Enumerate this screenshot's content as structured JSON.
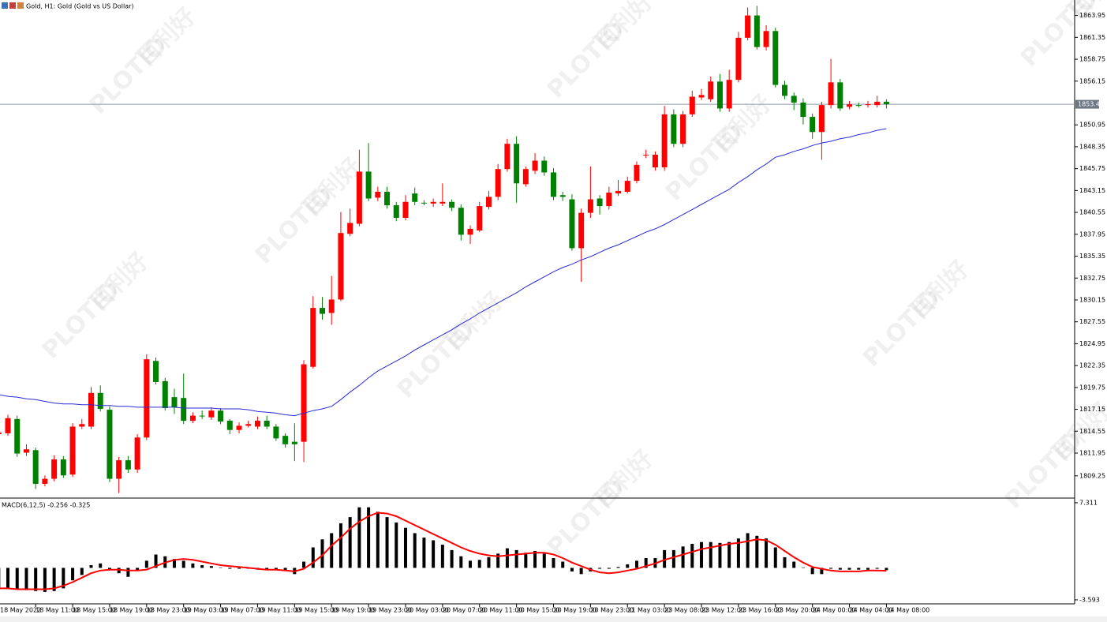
{
  "chart_data": [
    {
      "type": "candlestick",
      "title": "Gold, H1:  Gold (Gold vs US Dollar)",
      "categories": [
        "18 May 2022",
        null,
        null,
        null,
        "18 May 11:00",
        null,
        null,
        null,
        "18 May 15:00",
        null,
        null,
        null,
        "18 May 19:00",
        null,
        null,
        null,
        "18 May 23:00",
        null,
        null,
        null,
        "19 May 03:00",
        null,
        null,
        null,
        "19 May 07:00",
        null,
        null,
        null,
        "19 May 11:00",
        null,
        null,
        null,
        "19 May 15:00",
        null,
        null,
        null,
        "19 May 19:00",
        null,
        null,
        null,
        "19 May 23:00",
        null,
        null,
        null,
        "20 May 03:00",
        null,
        null,
        null,
        "20 May 07:00",
        null,
        null,
        null,
        "20 May 11:00",
        null,
        null,
        null,
        "20 May 15:00",
        null,
        null,
        null,
        "20 May 19:00",
        null,
        null,
        null,
        "20 May 23:00",
        null,
        null,
        null,
        "21 May 03:00",
        null,
        null,
        null,
        "23 May 08:00",
        null,
        null,
        null,
        "23 May 12:00",
        null,
        null,
        null,
        "23 May 16:00",
        null,
        null,
        null,
        "23 May 20:00",
        null,
        null,
        null,
        "24 May 00:00",
        null,
        null,
        null,
        "24 May 04:00",
        null,
        null,
        null,
        "24 May 08:00"
      ],
      "open": [
        1814.2,
        1814.3,
        1816.0,
        1812.0,
        1812.3,
        1808.3,
        1808.9,
        1811.2,
        1809.4,
        1815.1,
        1815.1,
        1819.1,
        1817.1,
        1808.9,
        1811.1,
        1810.0,
        1813.8,
        1822.9,
        1820.5,
        1818.6,
        1818.5,
        1815.8,
        1816.4,
        1816.2,
        1817.0,
        1815.8,
        1814.7,
        1815.2,
        1815.1,
        1815.8,
        1815.1,
        1814.0,
        1813.3,
        1813.3,
        1822.2,
        1829.2,
        1828.6,
        1830.2,
        1838.0,
        1839.2,
        1845.4,
        1842.3,
        1843.0,
        1841.4,
        1839.9,
        1842.8,
        1841.7,
        1841.6,
        1841.6,
        1841.8,
        1841.1,
        1837.9,
        1838.4,
        1841.2,
        1842.4,
        1845.7,
        1848.7,
        1843.9,
        1845.5,
        1846.7,
        1845.3,
        1842.6,
        1842.1,
        1836.3,
        1840.5,
        1842.2,
        1841.3,
        1842.8,
        1843.0,
        1844.3,
        1847.3,
        1845.9,
        1845.9,
        1852.2,
        1848.7,
        1852.2,
        1854.2,
        1854.0,
        1856.1,
        1852.9,
        1856.3,
        1861.3,
        1863.95,
        1860.2,
        1862.1,
        1855.7,
        1854.4,
        1853.6,
        1851.9,
        1850.1,
        1853.3,
        1856.0,
        1853.1,
        1853.3,
        1853.3,
        1853.3,
        1853.7
      ],
      "high": [
        1814.8,
        1816.5,
        1816.4,
        1813.0,
        1812.6,
        1809.3,
        1811.7,
        1811.6,
        1815.5,
        1816.0,
        1819.8,
        1820.0,
        1817.5,
        1811.5,
        1811.6,
        1814.2,
        1823.7,
        1823.3,
        1820.9,
        1819.6,
        1821.4,
        1816.8,
        1817.0,
        1817.4,
        1817.3,
        1816.0,
        1815.6,
        1815.8,
        1816.3,
        1816.4,
        1815.4,
        1814.3,
        1815.5,
        1823.0,
        1830.6,
        1830.5,
        1833.0,
        1840.6,
        1841.0,
        1848.0,
        1848.8,
        1843.6,
        1843.6,
        1841.8,
        1842.6,
        1843.5,
        1842.0,
        1842.2,
        1844.0,
        1842.1,
        1841.5,
        1839.0,
        1841.8,
        1843.1,
        1846.3,
        1849.3,
        1849.6,
        1846.0,
        1847.6,
        1847.2,
        1845.8,
        1843.0,
        1842.7,
        1841.0,
        1846.0,
        1842.6,
        1843.6,
        1844.4,
        1844.8,
        1846.6,
        1848.0,
        1847.8,
        1853.2,
        1852.8,
        1852.6,
        1855.0,
        1855.2,
        1856.7,
        1857.0,
        1857.5,
        1862.0,
        1864.9,
        1865.1,
        1862.8,
        1862.5,
        1856.2,
        1854.8,
        1854.1,
        1852.3,
        1853.7,
        1858.8,
        1856.4,
        1853.8,
        1853.6,
        1853.8,
        1854.4,
        1854.0
      ],
      "low": [
        1813.9,
        1814.0,
        1811.5,
        1811.6,
        1807.7,
        1808.0,
        1808.6,
        1809.0,
        1809.1,
        1814.8,
        1814.8,
        1816.9,
        1808.5,
        1807.2,
        1809.6,
        1809.6,
        1813.5,
        1820.1,
        1817.0,
        1816.6,
        1815.4,
        1815.5,
        1816.0,
        1815.9,
        1815.4,
        1814.2,
        1814.3,
        1815.0,
        1814.8,
        1814.8,
        1813.4,
        1812.6,
        1811.0,
        1810.9,
        1822.0,
        1827.8,
        1827.2,
        1830.0,
        1837.7,
        1838.9,
        1841.9,
        1841.9,
        1841.0,
        1839.5,
        1839.6,
        1841.4,
        1841.4,
        1841.2,
        1841.3,
        1840.7,
        1837.2,
        1836.8,
        1838.2,
        1840.9,
        1842.0,
        1845.4,
        1841.7,
        1843.6,
        1845.1,
        1844.9,
        1842.0,
        1841.9,
        1836.0,
        1832.3,
        1839.9,
        1840.3,
        1840.9,
        1842.5,
        1842.8,
        1844.0,
        1847.0,
        1845.5,
        1845.5,
        1848.3,
        1848.3,
        1851.9,
        1853.9,
        1853.7,
        1852.5,
        1852.5,
        1856.0,
        1861.0,
        1859.9,
        1859.8,
        1855.4,
        1854.0,
        1852.7,
        1851.0,
        1849.3,
        1846.8,
        1852.9,
        1852.6,
        1852.8,
        1853.0,
        1853.0,
        1853.0,
        1852.9
      ],
      "close": [
        1814.4,
        1816.1,
        1811.9,
        1812.4,
        1808.3,
        1808.9,
        1811.2,
        1809.3,
        1815.1,
        1815.4,
        1819.1,
        1817.2,
        1808.9,
        1811.1,
        1810.0,
        1813.8,
        1823.1,
        1820.4,
        1817.3,
        1817.4,
        1815.8,
        1816.4,
        1816.4,
        1817.0,
        1815.7,
        1814.7,
        1815.2,
        1815.4,
        1815.8,
        1815.1,
        1813.7,
        1813.0,
        1813.0,
        1822.5,
        1829.2,
        1828.5,
        1830.2,
        1838.1,
        1839.3,
        1845.4,
        1842.2,
        1843.0,
        1841.4,
        1839.9,
        1841.8,
        1841.8,
        1841.7,
        1841.8,
        1841.8,
        1841.1,
        1837.9,
        1838.6,
        1841.3,
        1842.4,
        1845.7,
        1848.7,
        1844.0,
        1845.7,
        1846.7,
        1845.3,
        1842.4,
        1842.4,
        1836.3,
        1840.5,
        1842.1,
        1841.3,
        1842.9,
        1843.1,
        1844.3,
        1846.2,
        1847.4,
        1847.4,
        1852.2,
        1848.7,
        1852.2,
        1854.3,
        1854.5,
        1856.1,
        1852.9,
        1856.3,
        1861.3,
        1863.95,
        1860.2,
        1862.1,
        1855.7,
        1854.4,
        1853.6,
        1851.9,
        1850.1,
        1853.3,
        1856.0,
        1852.9,
        1853.4,
        1853.3,
        1853.4,
        1853.7,
        1853.4
      ],
      "up_color": "#ff0000",
      "down_color": "#008000",
      "ma": {
        "color": "#2a2ad4",
        "values": [
          1818.9,
          1818.7,
          1818.6,
          1818.4,
          1818.3,
          1818.1,
          1817.9,
          1817.8,
          1817.8,
          1817.7,
          1817.7,
          1817.6,
          1817.6,
          1817.5,
          1817.5,
          1817.4,
          1817.4,
          1817.4,
          1817.4,
          1817.4,
          1817.3,
          1817.3,
          1817.3,
          1817.3,
          1817.2,
          1817.2,
          1817.2,
          1817.1,
          1816.9,
          1816.8,
          1816.7,
          1816.5,
          1816.4,
          1816.7,
          1817.0,
          1817.2,
          1817.5,
          1818.3,
          1819.2,
          1820.0,
          1820.9,
          1821.7,
          1822.3,
          1822.9,
          1823.5,
          1824.2,
          1824.8,
          1825.4,
          1826.0,
          1826.6,
          1827.3,
          1827.9,
          1828.6,
          1829.2,
          1829.8,
          1830.4,
          1831.0,
          1831.7,
          1832.3,
          1832.9,
          1833.5,
          1834.0,
          1834.4,
          1834.9,
          1835.3,
          1835.8,
          1836.3,
          1836.7,
          1837.2,
          1837.7,
          1838.2,
          1838.6,
          1839.1,
          1839.7,
          1840.3,
          1840.9,
          1841.5,
          1842.1,
          1842.7,
          1843.3,
          1844.1,
          1844.8,
          1845.6,
          1846.3,
          1847.1,
          1847.4,
          1847.8,
          1848.1,
          1848.5,
          1848.8,
          1849.0,
          1849.3,
          1849.5,
          1849.8,
          1850.0,
          1850.3,
          1850.5
        ]
      },
      "current_price": {
        "value": 1853.4,
        "label": "1853.40"
      },
      "ylim": [
        1806.7,
        1865.6
      ],
      "yticks": [
        1863.95,
        1861.35,
        1858.75,
        1856.15,
        1850.95,
        1848.35,
        1845.75,
        1843.15,
        1840.55,
        1837.95,
        1835.35,
        1832.75,
        1830.15,
        1827.55,
        1824.95,
        1822.35,
        1819.75,
        1817.15,
        1814.55,
        1811.95,
        1809.25
      ],
      "watermark": [
        "PLOTIO",
        "百利好"
      ]
    },
    {
      "type": "macd",
      "title": "MACD(6,12,5) -0.256 -0.325",
      "color": "#000000",
      "values": [
        -2.3,
        -2.3,
        -2.4,
        -2.5,
        -2.6,
        -2.7,
        -2.6,
        -2.3,
        -1.4,
        -0.8,
        0.3,
        0.5,
        -0.2,
        -0.6,
        -1.0,
        -0.3,
        0.8,
        1.5,
        1.3,
        1.0,
        0.8,
        0.5,
        0.3,
        0.2,
        0.05,
        -0.1,
        -0.1,
        -0.1,
        -0.2,
        -0.2,
        -0.2,
        -0.3,
        -0.7,
        0.7,
        2.3,
        3.2,
        3.9,
        5.0,
        5.7,
        6.8,
        6.8,
        6.3,
        5.7,
        5.1,
        4.5,
        3.9,
        3.4,
        3.1,
        2.6,
        2.0,
        1.3,
        0.8,
        0.9,
        1.2,
        1.6,
        2.2,
        2.0,
        1.7,
        1.9,
        1.6,
        1.1,
        0.7,
        -0.4,
        -0.7,
        -0.4,
        -0.1,
        -0.1,
        0.1,
        0.4,
        0.8,
        1.1,
        1.1,
        2.0,
        2.0,
        2.4,
        2.7,
        2.9,
        2.9,
        2.8,
        2.9,
        3.3,
        3.9,
        3.6,
        3.3,
        2.3,
        1.2,
        0.7,
        0.05,
        -0.7,
        -0.7,
        -0.1,
        -0.2,
        -0.2,
        -0.2,
        -0.2,
        -0.1,
        -0.256
      ],
      "signal": {
        "color": "#ff0000",
        "values": [
          -2.3,
          -2.3,
          -2.4,
          -2.4,
          -2.4,
          -2.4,
          -2.3,
          -2.0,
          -1.6,
          -1.1,
          -0.6,
          -0.3,
          -0.2,
          -0.2,
          -0.3,
          -0.3,
          -0.2,
          0.2,
          0.6,
          0.9,
          1.0,
          0.9,
          0.7,
          0.5,
          0.3,
          0.2,
          0.1,
          0.0,
          -0.1,
          -0.2,
          -0.2,
          -0.3,
          -0.4,
          -0.1,
          0.6,
          1.4,
          2.5,
          3.4,
          4.4,
          5.2,
          5.8,
          6.2,
          6.1,
          5.8,
          5.3,
          4.8,
          4.3,
          3.8,
          3.3,
          2.8,
          2.3,
          1.9,
          1.6,
          1.4,
          1.3,
          1.4,
          1.5,
          1.6,
          1.7,
          1.7,
          1.5,
          1.1,
          0.6,
          0.2,
          -0.2,
          -0.5,
          -0.6,
          -0.5,
          -0.3,
          -0.1,
          0.2,
          0.5,
          0.9,
          1.2,
          1.5,
          1.8,
          2.1,
          2.3,
          2.5,
          2.7,
          2.8,
          3.0,
          3.2,
          3.1,
          2.6,
          1.9,
          1.2,
          0.6,
          0.1,
          -0.1,
          -0.3,
          -0.4,
          -0.4,
          -0.4,
          -0.3,
          -0.3,
          -0.325
        ]
      },
      "ylim": [
        -4.04,
        7.75
      ],
      "yticks": [
        7.311,
        -3.593
      ]
    }
  ]
}
